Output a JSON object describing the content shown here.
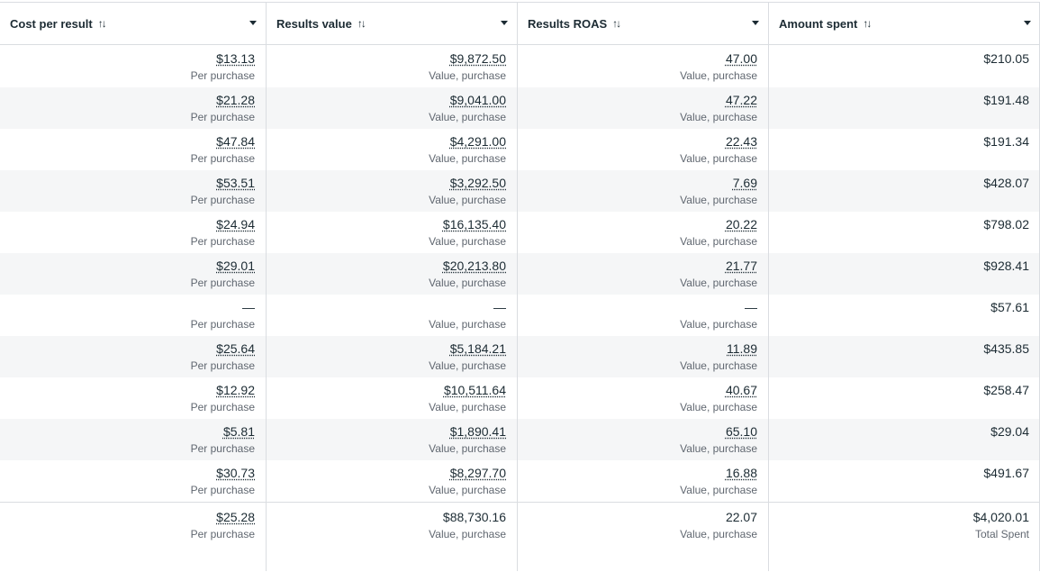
{
  "columns": [
    {
      "key": "cost_per_result",
      "label": "Cost per result",
      "sort_icon": "sort-arrows-icon",
      "menu_icon": "caret-down-icon"
    },
    {
      "key": "results_value",
      "label": "Results value",
      "sort_icon": "sort-arrows-icon",
      "menu_icon": "caret-down-icon"
    },
    {
      "key": "results_roas",
      "label": "Results ROAS",
      "sort_icon": "sort-arrows-icon",
      "menu_icon": "caret-down-icon"
    },
    {
      "key": "amount_spent",
      "label": "Amount spent",
      "sort_icon": "sort-arrows-icon",
      "menu_icon": "caret-down-icon"
    }
  ],
  "sort_glyph": "↑↓",
  "rows": [
    {
      "cost": "$13.13",
      "cost_sub": "Per purchase",
      "value": "$9,872.50",
      "value_sub": "Value, purchase",
      "roas": "47.00",
      "roas_sub": "Value, purchase",
      "spent": "$210.05"
    },
    {
      "cost": "$21.28",
      "cost_sub": "Per purchase",
      "value": "$9,041.00",
      "value_sub": "Value, purchase",
      "roas": "47.22",
      "roas_sub": "Value, purchase",
      "spent": "$191.48"
    },
    {
      "cost": "$47.84",
      "cost_sub": "Per purchase",
      "value": "$4,291.00",
      "value_sub": "Value, purchase",
      "roas": "22.43",
      "roas_sub": "Value, purchase",
      "spent": "$191.34"
    },
    {
      "cost": "$53.51",
      "cost_sub": "Per purchase",
      "value": "$3,292.50",
      "value_sub": "Value, purchase",
      "roas": "7.69",
      "roas_sub": "Value, purchase",
      "spent": "$428.07"
    },
    {
      "cost": "$24.94",
      "cost_sub": "Per purchase",
      "value": "$16,135.40",
      "value_sub": "Value, purchase",
      "roas": "20.22",
      "roas_sub": "Value, purchase",
      "spent": "$798.02"
    },
    {
      "cost": "$29.01",
      "cost_sub": "Per purchase",
      "value": "$20,213.80",
      "value_sub": "Value, purchase",
      "roas": "21.77",
      "roas_sub": "Value, purchase",
      "spent": "$928.41"
    },
    {
      "cost": "—",
      "cost_sub": "Per purchase",
      "value": "—",
      "value_sub": "Value, purchase",
      "roas": "—",
      "roas_sub": "Value, purchase",
      "spent": "$57.61"
    },
    {
      "cost": "$25.64",
      "cost_sub": "Per purchase",
      "value": "$5,184.21",
      "value_sub": "Value, purchase",
      "roas": "11.89",
      "roas_sub": "Value, purchase",
      "spent": "$435.85"
    },
    {
      "cost": "$12.92",
      "cost_sub": "Per purchase",
      "value": "$10,511.64",
      "value_sub": "Value, purchase",
      "roas": "40.67",
      "roas_sub": "Value, purchase",
      "spent": "$258.47"
    },
    {
      "cost": "$5.81",
      "cost_sub": "Per purchase",
      "value": "$1,890.41",
      "value_sub": "Value, purchase",
      "roas": "65.10",
      "roas_sub": "Value, purchase",
      "spent": "$29.04"
    },
    {
      "cost": "$30.73",
      "cost_sub": "Per purchase",
      "value": "$8,297.70",
      "value_sub": "Value, purchase",
      "roas": "16.88",
      "roas_sub": "Value, purchase",
      "spent": "$491.67"
    }
  ],
  "summary": {
    "cost": "$25.28",
    "cost_sub": "Per purchase",
    "value": "$88,730.16",
    "value_sub": "Value, purchase",
    "roas": "22.07",
    "roas_sub": "Value, purchase",
    "spent": "$4,020.01",
    "spent_sub": "Total Spent"
  },
  "colors": {
    "border": "#dadde1",
    "alt_row": "#f5f6f7",
    "text": "#1c2b33",
    "muted": "#606770"
  }
}
